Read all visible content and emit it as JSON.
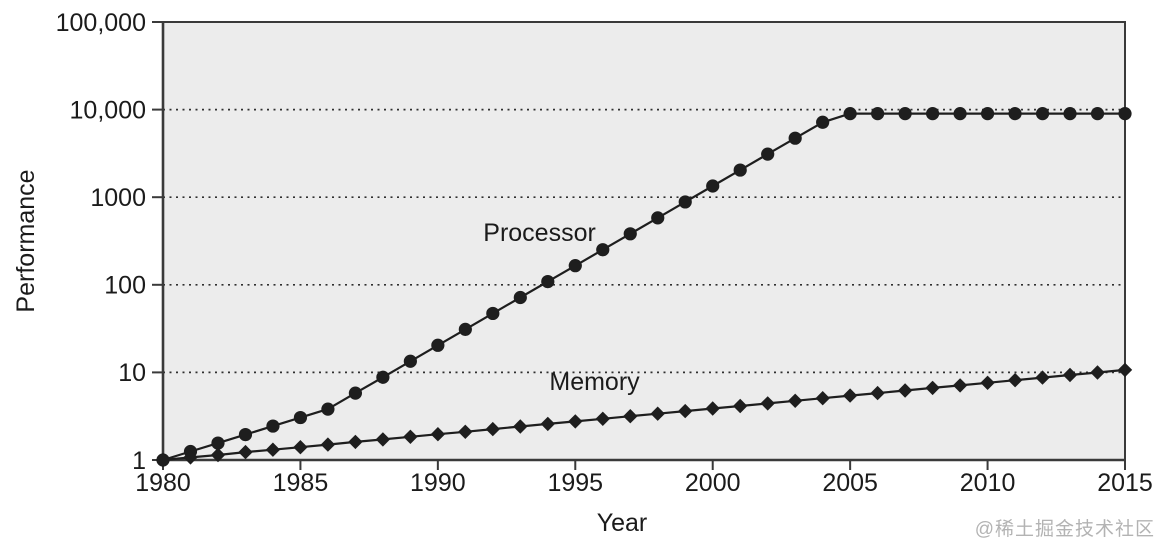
{
  "watermark": {
    "text": "@稀土掘金技术社区",
    "color": "#b3b3b3"
  },
  "chart_data": {
    "type": "line",
    "title": "",
    "xlabel": "Year",
    "ylabel": "Performance",
    "yscale": "log",
    "xlim": [
      1980,
      2015
    ],
    "ylim": [
      1,
      100000
    ],
    "grid": "horizontal-dotted-at-decades",
    "legend_position": "inline-labels",
    "plot_bg": "#ececec",
    "line_color": "#1e1e1e",
    "text_color": "#1b1b1b",
    "frame_color": "#3a3a3a",
    "grid_color": "#2f2f2f",
    "x_ticks": [
      1980,
      1985,
      1990,
      1995,
      2000,
      2005,
      2010,
      2015
    ],
    "y_ticks": [
      {
        "value": 1,
        "label": "1"
      },
      {
        "value": 10,
        "label": "10"
      },
      {
        "value": 100,
        "label": "100"
      },
      {
        "value": 1000,
        "label": "1000"
      },
      {
        "value": 10000,
        "label": "10,000"
      },
      {
        "value": 100000,
        "label": "100,000"
      }
    ],
    "x": [
      1980,
      1981,
      1982,
      1983,
      1984,
      1985,
      1986,
      1987,
      1988,
      1989,
      1990,
      1991,
      1992,
      1993,
      1994,
      1995,
      1996,
      1997,
      1998,
      1999,
      2000,
      2001,
      2002,
      2003,
      2004,
      2005,
      2006,
      2007,
      2008,
      2009,
      2010,
      2011,
      2012,
      2013,
      2014,
      2015
    ],
    "series": [
      {
        "name": "Processor",
        "marker": "circle",
        "values": [
          1,
          1.25,
          1.56,
          1.95,
          2.44,
          3.05,
          3.81,
          5.8,
          8.8,
          13.4,
          20.4,
          31,
          47.1,
          71.6,
          108.8,
          165.4,
          251.4,
          382.2,
          581,
          883,
          1342,
          2040,
          3101,
          4714,
          7166,
          9000,
          9000,
          9000,
          9000,
          9000,
          9000,
          9000,
          9000,
          9000,
          9000,
          9000
        ]
      },
      {
        "name": "Memory",
        "marker": "diamond",
        "values": [
          1,
          1.07,
          1.14,
          1.23,
          1.31,
          1.4,
          1.5,
          1.61,
          1.72,
          1.84,
          1.97,
          2.1,
          2.25,
          2.41,
          2.58,
          2.76,
          2.95,
          3.16,
          3.38,
          3.62,
          3.87,
          4.14,
          4.43,
          4.74,
          5.07,
          5.43,
          5.81,
          6.21,
          6.65,
          7.11,
          7.61,
          8.15,
          8.72,
          9.33,
          9.98,
          10.68
        ]
      }
    ],
    "annotations": [
      {
        "text": "Processor",
        "year": 1993.7,
        "value": 316
      },
      {
        "text": "Memory",
        "year": 1995.7,
        "value": 6.3
      }
    ]
  }
}
